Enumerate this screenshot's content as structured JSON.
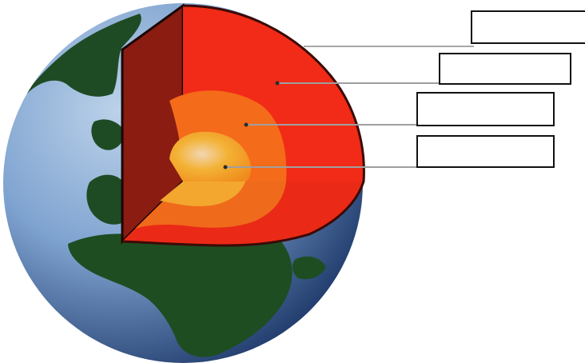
{
  "diagram": {
    "labels": [
      {
        "id": "crust",
        "text": ""
      },
      {
        "id": "mantle",
        "text": ""
      },
      {
        "id": "outer-core",
        "text": ""
      },
      {
        "id": "inner-core",
        "text": ""
      }
    ]
  },
  "colors": {
    "ocean_light": "#8fb0d4",
    "ocean_dark": "#173266",
    "land": "#1e4d22",
    "crust": "#8c1d12",
    "mantle": "#f12b17",
    "outer_core": "#f46b1a",
    "inner_core": "#f3b235",
    "leader_line": "#a9a9a9"
  }
}
